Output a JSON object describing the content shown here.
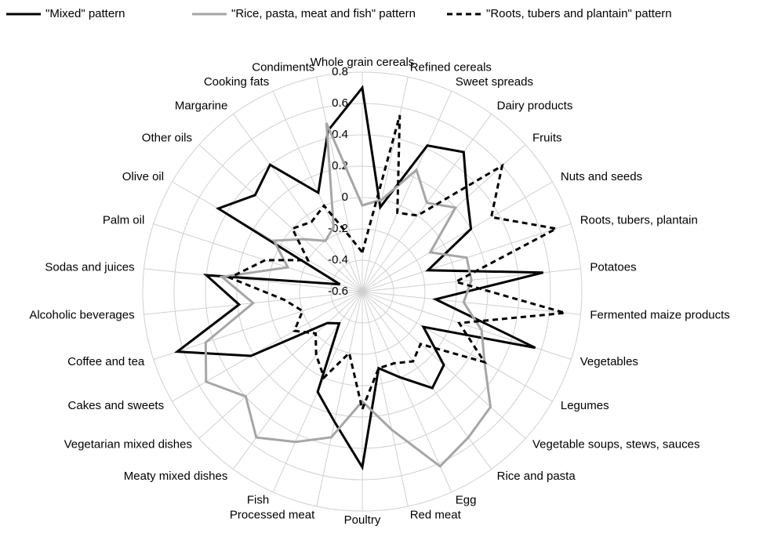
{
  "chart_data": {
    "type": "radar",
    "categories": [
      "Whole grain cereals",
      "Refined cereals",
      "Sweet spreads",
      "Dairy products",
      "Fruits",
      "Nuts and seeds",
      "Roots, tubers, plantain",
      "Potatoes",
      "Fermented maize products",
      "Vegetables",
      "Legumes",
      "Vegetable soups, stews, sauces",
      "Rice and pasta",
      "Egg",
      "Red meat",
      "Poultry",
      "Processed meat",
      "Fish",
      "Meaty mixed dishes",
      "Vegetarian mixed dishes",
      "Cakes and sweets",
      "Coffee and tea",
      "Alcoholic beverages",
      "Sodas and juices",
      "Palm oil",
      "Olive oil",
      "Other oils",
      "Margarine",
      "Cooking fats",
      "Condiments"
    ],
    "series": [
      {
        "name": "\"Mixed\" pattern",
        "color": "#000000",
        "dash": "solid",
        "values": [
          0.7,
          -0.05,
          0.42,
          0.5,
          0.3,
          0.2,
          -0.16,
          0.56,
          -0.13,
          0.56,
          -0.15,
          0.1,
          0.16,
          0.0,
          -0.1,
          0.52,
          0.25,
          0.1,
          -0.35,
          -0.3,
          0.22,
          0.64,
          0.19,
          0.4,
          -0.45,
          0.46,
          0.32,
          0.4,
          0.09,
          0.45
        ]
      },
      {
        "name": "\"Rice, pasta, meat and fish\" pattern",
        "color": "#a6a6a6",
        "dash": "solid",
        "values": [
          -0.05,
          0.0,
          0.25,
          0.1,
          0.2,
          -0.1,
          0.1,
          0.1,
          0.05,
          0.2,
          0.3,
          0.5,
          0.55,
          0.62,
          0.3,
          0.1,
          0.35,
          0.45,
          0.55,
          0.4,
          0.55,
          0.45,
          0.1,
          0.3,
          -0.1,
          0.05,
          -0.1,
          -0.2,
          -0.15,
          0.5
        ]
      },
      {
        "name": "\"Roots, tubers and plantain\" pattern",
        "color": "#000000",
        "dash": "dashed",
        "values": [
          -0.35,
          0.55,
          -0.05,
          0.0,
          0.6,
          0.35,
          0.7,
          0.0,
          0.7,
          0.05,
          0.3,
          -0.1,
          -0.05,
          -0.1,
          -0.1,
          0.15,
          -0.2,
          0.0,
          -0.1,
          -0.2,
          -0.1,
          -0.2,
          -0.1,
          0.25,
          0.05,
          -0.2,
          0.0,
          -0.05,
          0.0,
          -0.25
        ]
      }
    ],
    "ylim": [
      -0.6,
      0.8
    ],
    "yticks": [
      -0.6,
      -0.4,
      -0.2,
      0,
      0.2,
      0.4,
      0.6,
      0.8
    ],
    "grid": true,
    "legend": "top"
  }
}
